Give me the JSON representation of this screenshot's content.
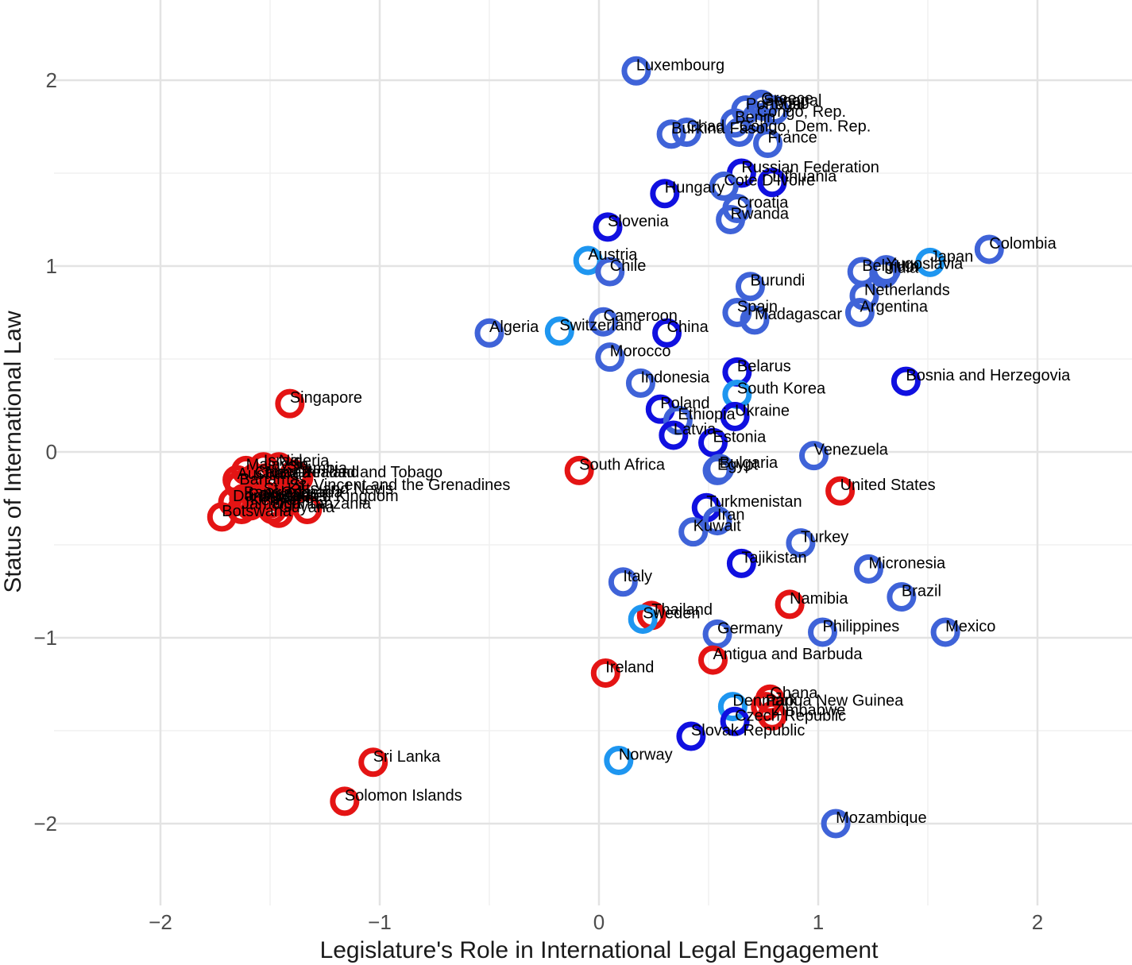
{
  "chart_data": {
    "type": "scatter",
    "title": "",
    "xlabel": "Legislature's Role in International Legal Engagement",
    "ylabel": "Status of International Law",
    "xlim": [
      -2.45,
      2.45
    ],
    "ylim": [
      -2.4,
      2.4
    ],
    "x_ticks": [
      -2,
      -1,
      0,
      1,
      2
    ],
    "x_tick_labels": [
      "−2",
      "−1",
      "0",
      "1",
      "2"
    ],
    "y_ticks": [
      -2,
      -1,
      0,
      1,
      2
    ],
    "y_tick_labels": [
      "−2",
      "−1",
      "0",
      "1",
      "2"
    ],
    "grid": true,
    "legend": "none",
    "marker": "open-circle",
    "colors": {
      "red": "#e41414",
      "blue": "#3f63d8",
      "darkblue": "#1010e0",
      "lightblue": "#1e96f0",
      "grid": "#e3e3e3",
      "tick_text": "#4d4d4d"
    },
    "points": [
      {
        "label": "Luxembourg",
        "x": 0.17,
        "y": 2.05,
        "group": "blue"
      },
      {
        "label": "Senegal",
        "x": 0.75,
        "y": 1.86,
        "group": "blue"
      },
      {
        "label": "Greece",
        "x": 0.74,
        "y": 1.87,
        "group": "blue"
      },
      {
        "label": "Portugal",
        "x": 0.67,
        "y": 1.84,
        "group": "blue"
      },
      {
        "label": "Mali",
        "x": 0.8,
        "y": 1.84,
        "group": "blue"
      },
      {
        "label": "Congo, Rep.",
        "x": 0.72,
        "y": 1.8,
        "group": "blue"
      },
      {
        "label": "Benin",
        "x": 0.62,
        "y": 1.77,
        "group": "blue"
      },
      {
        "label": "Chad",
        "x": 0.4,
        "y": 1.72,
        "group": "blue"
      },
      {
        "label": "Burkina Faso",
        "x": 0.33,
        "y": 1.71,
        "group": "blue"
      },
      {
        "label": "Congo, Dem. Rep.",
        "x": 0.64,
        "y": 1.72,
        "group": "blue"
      },
      {
        "label": "France",
        "x": 0.77,
        "y": 1.66,
        "group": "blue"
      },
      {
        "label": "Russian Federation",
        "x": 0.65,
        "y": 1.5,
        "group": "darkblue"
      },
      {
        "label": "Cote D'Ivoire",
        "x": 0.57,
        "y": 1.43,
        "group": "blue"
      },
      {
        "label": "Lithuania",
        "x": 0.79,
        "y": 1.45,
        "group": "darkblue"
      },
      {
        "label": "Hungary",
        "x": 0.3,
        "y": 1.39,
        "group": "darkblue"
      },
      {
        "label": "Croatia",
        "x": 0.63,
        "y": 1.31,
        "group": "blue"
      },
      {
        "label": "Rwanda",
        "x": 0.6,
        "y": 1.25,
        "group": "blue"
      },
      {
        "label": "Slovenia",
        "x": 0.04,
        "y": 1.21,
        "group": "darkblue"
      },
      {
        "label": "Colombia",
        "x": 1.78,
        "y": 1.09,
        "group": "blue"
      },
      {
        "label": "Japan",
        "x": 1.51,
        "y": 1.02,
        "group": "lightblue"
      },
      {
        "label": "Yugoslavia",
        "x": 1.31,
        "y": 0.98,
        "group": "blue"
      },
      {
        "label": "Belgium",
        "x": 1.2,
        "y": 0.97,
        "group": "blue"
      },
      {
        "label": "India",
        "x": 1.3,
        "y": 0.96,
        "group": "blue"
      },
      {
        "label": "Austria",
        "x": -0.05,
        "y": 1.03,
        "group": "lightblue"
      },
      {
        "label": "Chile",
        "x": 0.05,
        "y": 0.97,
        "group": "blue"
      },
      {
        "label": "Burundi",
        "x": 0.69,
        "y": 0.89,
        "group": "blue"
      },
      {
        "label": "Netherlands",
        "x": 1.21,
        "y": 0.84,
        "group": "blue"
      },
      {
        "label": "Argentina",
        "x": 1.19,
        "y": 0.75,
        "group": "blue"
      },
      {
        "label": "Spain",
        "x": 0.63,
        "y": 0.75,
        "group": "blue"
      },
      {
        "label": "Madagascar",
        "x": 0.71,
        "y": 0.71,
        "group": "blue"
      },
      {
        "label": "Cameroon",
        "x": 0.02,
        "y": 0.7,
        "group": "blue"
      },
      {
        "label": "Algeria",
        "x": -0.5,
        "y": 0.64,
        "group": "blue"
      },
      {
        "label": "Switzerland",
        "x": -0.18,
        "y": 0.65,
        "group": "lightblue"
      },
      {
        "label": "China",
        "x": 0.31,
        "y": 0.64,
        "group": "darkblue"
      },
      {
        "label": "Morocco",
        "x": 0.05,
        "y": 0.51,
        "group": "blue"
      },
      {
        "label": "Belarus",
        "x": 0.63,
        "y": 0.43,
        "group": "darkblue"
      },
      {
        "label": "Indonesia",
        "x": 0.19,
        "y": 0.37,
        "group": "blue"
      },
      {
        "label": "Bosnia and Herzegovia",
        "x": 1.4,
        "y": 0.38,
        "group": "darkblue"
      },
      {
        "label": "South Korea",
        "x": 0.63,
        "y": 0.31,
        "group": "lightblue"
      },
      {
        "label": "Singapore",
        "x": -1.41,
        "y": 0.26,
        "group": "red"
      },
      {
        "label": "Poland",
        "x": 0.28,
        "y": 0.23,
        "group": "darkblue"
      },
      {
        "label": "Ukraine",
        "x": 0.62,
        "y": 0.19,
        "group": "darkblue"
      },
      {
        "label": "Ethiopia",
        "x": 0.36,
        "y": 0.17,
        "group": "blue"
      },
      {
        "label": "Latvia",
        "x": 0.34,
        "y": 0.09,
        "group": "darkblue"
      },
      {
        "label": "Estonia",
        "x": 0.52,
        "y": 0.05,
        "group": "darkblue"
      },
      {
        "label": "Venezuela",
        "x": 0.98,
        "y": -0.02,
        "group": "blue"
      },
      {
        "label": "South Africa",
        "x": -0.09,
        "y": -0.1,
        "group": "red"
      },
      {
        "label": "Bulgaria",
        "x": 0.55,
        "y": -0.09,
        "group": "blue"
      },
      {
        "label": "Egypt",
        "x": 0.54,
        "y": -0.1,
        "group": "blue"
      },
      {
        "label": "United States",
        "x": 1.1,
        "y": -0.21,
        "group": "red"
      },
      {
        "label": "Turkmenistan",
        "x": 0.49,
        "y": -0.3,
        "group": "darkblue"
      },
      {
        "label": "Iran",
        "x": 0.54,
        "y": -0.37,
        "group": "blue"
      },
      {
        "label": "Kuwait",
        "x": 0.43,
        "y": -0.43,
        "group": "blue"
      },
      {
        "label": "Turkey",
        "x": 0.92,
        "y": -0.49,
        "group": "blue"
      },
      {
        "label": "Tajikistan",
        "x": 0.65,
        "y": -0.6,
        "group": "darkblue"
      },
      {
        "label": "Micronesia",
        "x": 1.23,
        "y": -0.63,
        "group": "blue"
      },
      {
        "label": "Italy",
        "x": 0.11,
        "y": -0.7,
        "group": "blue"
      },
      {
        "label": "Brazil",
        "x": 1.38,
        "y": -0.78,
        "group": "blue"
      },
      {
        "label": "Namibia",
        "x": 0.87,
        "y": -0.82,
        "group": "red"
      },
      {
        "label": "Thailand",
        "x": 0.24,
        "y": -0.88,
        "group": "red"
      },
      {
        "label": "Sweden",
        "x": 0.2,
        "y": -0.9,
        "group": "lightblue"
      },
      {
        "label": "Germany",
        "x": 0.54,
        "y": -0.98,
        "group": "blue"
      },
      {
        "label": "Philippines",
        "x": 1.02,
        "y": -0.97,
        "group": "blue"
      },
      {
        "label": "Mexico",
        "x": 1.58,
        "y": -0.97,
        "group": "blue"
      },
      {
        "label": "Antigua and Barbuda",
        "x": 0.52,
        "y": -1.12,
        "group": "red"
      },
      {
        "label": "Ireland",
        "x": 0.03,
        "y": -1.19,
        "group": "red"
      },
      {
        "label": "Ghana",
        "x": 0.78,
        "y": -1.33,
        "group": "red"
      },
      {
        "label": "Denmark",
        "x": 0.61,
        "y": -1.37,
        "group": "lightblue"
      },
      {
        "label": "Papua New Guinea",
        "x": 0.76,
        "y": -1.37,
        "group": "red"
      },
      {
        "label": "Zimbabwe",
        "x": 0.79,
        "y": -1.42,
        "group": "red"
      },
      {
        "label": "Czech Republic",
        "x": 0.62,
        "y": -1.45,
        "group": "darkblue"
      },
      {
        "label": "Slovak Republic",
        "x": 0.42,
        "y": -1.53,
        "group": "darkblue"
      },
      {
        "label": "Sri Lanka",
        "x": -1.03,
        "y": -1.67,
        "group": "red"
      },
      {
        "label": "Norway",
        "x": 0.09,
        "y": -1.66,
        "group": "lightblue"
      },
      {
        "label": "Solomon Islands",
        "x": -1.16,
        "y": -1.88,
        "group": "red"
      },
      {
        "label": "Mozambique",
        "x": 1.08,
        "y": -2.0,
        "group": "blue"
      },
      {
        "label": "Nigeria",
        "x": -1.46,
        "y": -0.08,
        "group": "red"
      },
      {
        "label": "Israel",
        "x": -1.53,
        "y": -0.08,
        "group": "red"
      },
      {
        "label": "Zambia",
        "x": -1.39,
        "y": -0.12,
        "group": "red"
      },
      {
        "label": "Malaysia",
        "x": -1.61,
        "y": -0.1,
        "group": "red"
      },
      {
        "label": "Trinidad and Tobago",
        "x": -1.37,
        "y": -0.14,
        "group": "red"
      },
      {
        "label": "New Zealand",
        "x": -1.52,
        "y": -0.14,
        "group": "red"
      },
      {
        "label": "Canada",
        "x": -1.57,
        "y": -0.14,
        "group": "red"
      },
      {
        "label": "Australia",
        "x": -1.65,
        "y": -0.15,
        "group": "red"
      },
      {
        "label": "Bahamas",
        "x": -1.64,
        "y": -0.18,
        "group": "red"
      },
      {
        "label": "St. Vincent and the Grenadines",
        "x": -1.41,
        "y": -0.21,
        "group": "red"
      },
      {
        "label": "St. Kitts and Nevis",
        "x": -1.53,
        "y": -0.23,
        "group": "red"
      },
      {
        "label": "Bangladesh",
        "x": -1.62,
        "y": -0.25,
        "group": "red"
      },
      {
        "label": "Dominica",
        "x": -1.67,
        "y": -0.27,
        "group": "red"
      },
      {
        "label": "Pakistan",
        "x": -1.6,
        "y": -0.26,
        "group": "red"
      },
      {
        "label": "Grenada",
        "x": -1.45,
        "y": -0.25,
        "group": "red"
      },
      {
        "label": "Barbados",
        "x": -1.55,
        "y": -0.27,
        "group": "red"
      },
      {
        "label": "Belize",
        "x": -1.5,
        "y": -0.28,
        "group": "red"
      },
      {
        "label": "United Kingdom",
        "x": -1.43,
        "y": -0.27,
        "group": "red"
      },
      {
        "label": "Kenya",
        "x": -1.59,
        "y": -0.29,
        "group": "red"
      },
      {
        "label": "Uganda",
        "x": -1.49,
        "y": -0.31,
        "group": "red"
      },
      {
        "label": "Tanzania",
        "x": -1.33,
        "y": -0.31,
        "group": "red"
      },
      {
        "label": "Jamaica",
        "x": -1.63,
        "y": -0.31,
        "group": "red"
      },
      {
        "label": "Guyana",
        "x": -1.46,
        "y": -0.33,
        "group": "red"
      },
      {
        "label": "Botswana",
        "x": -1.72,
        "y": -0.35,
        "group": "red"
      }
    ]
  }
}
